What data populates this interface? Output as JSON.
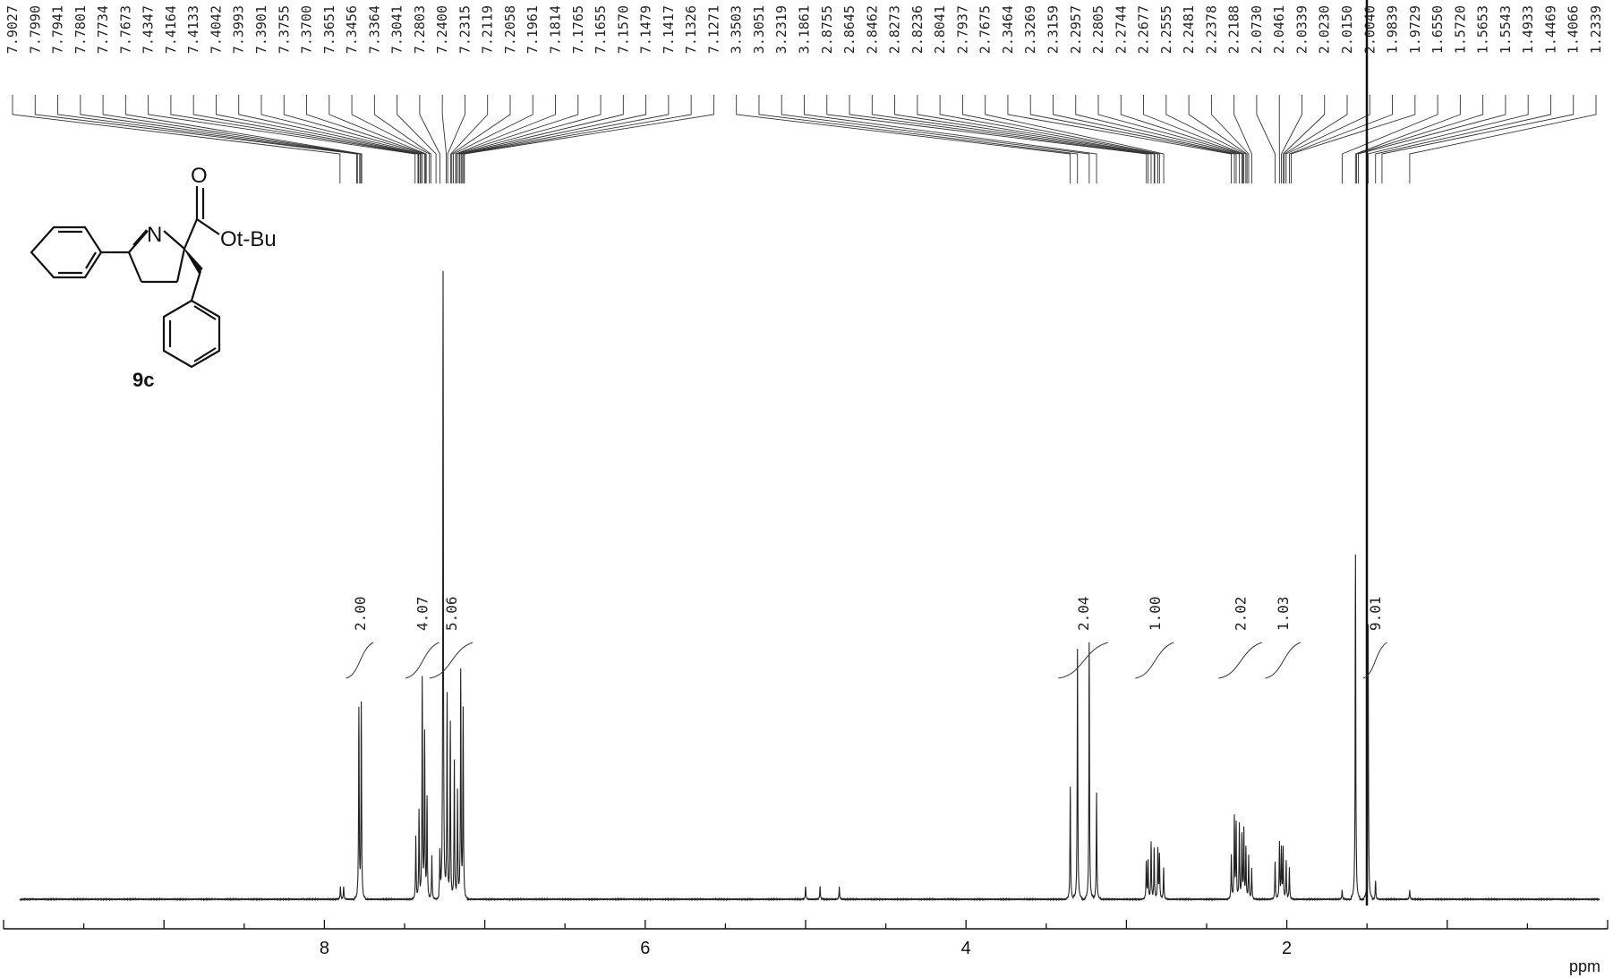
{
  "chart_data": {
    "type": "line",
    "xlabel": "ppm",
    "xlim": [
      10.0,
      0.0
    ],
    "x_reversed": true,
    "x_ticks": [
      8,
      6,
      4,
      2
    ],
    "peak_labels": [
      "7.9027",
      "7.7990",
      "7.7941",
      "7.7801",
      "7.7734",
      "7.7673",
      "7.4347",
      "7.4164",
      "7.4133",
      "7.4042",
      "7.3993",
      "7.3901",
      "7.3755",
      "7.3700",
      "7.3651",
      "7.3456",
      "7.3364",
      "7.3041",
      "7.2803",
      "7.2400",
      "7.2315",
      "7.2119",
      "7.2058",
      "7.1961",
      "7.1814",
      "7.1765",
      "7.1655",
      "7.1570",
      "7.1479",
      "7.1417",
      "7.1326",
      "7.1271",
      "3.3503",
      "3.3051",
      "3.2319",
      "3.1861",
      "2.8755",
      "2.8645",
      "2.8462",
      "2.8273",
      "2.8236",
      "2.8041",
      "2.7937",
      "2.7675",
      "2.3464",
      "2.3269",
      "2.3159",
      "2.2957",
      "2.2805",
      "2.2744",
      "2.2677",
      "2.2555",
      "2.2481",
      "2.2378",
      "2.2188",
      "2.0730",
      "2.0461",
      "2.0339",
      "2.0230",
      "2.0150",
      "2.0040",
      "1.9839",
      "1.9729",
      "1.6550",
      "1.5720",
      "1.5653",
      "1.5543",
      "1.4933",
      "1.4469",
      "1.4066",
      "1.2339"
    ],
    "integrals": [
      {
        "label": "2.00",
        "from": 7.82,
        "to": 7.74
      },
      {
        "label": "4.07",
        "from": 7.45,
        "to": 7.33
      },
      {
        "label": "5.06",
        "from": 7.3,
        "to": 7.12
      },
      {
        "label": "2.04",
        "from": 3.38,
        "to": 3.16
      },
      {
        "label": "1.00",
        "from": 2.9,
        "to": 2.75
      },
      {
        "label": "2.02",
        "from": 2.38,
        "to": 2.2
      },
      {
        "label": "1.03",
        "from": 2.09,
        "to": 1.96
      },
      {
        "label": "9.01",
        "from": 1.48,
        "to": 1.42
      }
    ],
    "series": [
      {
        "peaks": [
          [
            7.9,
            0.02
          ],
          [
            7.88,
            0.02
          ],
          [
            7.785,
            0.3
          ],
          [
            7.77,
            0.31
          ],
          [
            7.43,
            0.1
          ],
          [
            7.41,
            0.14
          ],
          [
            7.39,
            0.35
          ],
          [
            7.375,
            0.26
          ],
          [
            7.36,
            0.16
          ],
          [
            7.33,
            0.07
          ],
          [
            7.28,
            0.07
          ],
          [
            7.26,
            1.0
          ],
          [
            7.235,
            0.32
          ],
          [
            7.215,
            0.28
          ],
          [
            7.19,
            0.22
          ],
          [
            7.17,
            0.17
          ],
          [
            7.15,
            0.36
          ],
          [
            7.135,
            0.3
          ],
          [
            5.0,
            0.02
          ],
          [
            4.91,
            0.02
          ],
          [
            4.79,
            0.02
          ],
          [
            3.35,
            0.18
          ],
          [
            3.305,
            0.4
          ],
          [
            3.232,
            0.41
          ],
          [
            3.186,
            0.17
          ],
          [
            2.876,
            0.06
          ],
          [
            2.865,
            0.06
          ],
          [
            2.846,
            0.09
          ],
          [
            2.827,
            0.08
          ],
          [
            2.804,
            0.08
          ],
          [
            2.794,
            0.07
          ],
          [
            2.768,
            0.05
          ],
          [
            2.346,
            0.07
          ],
          [
            2.327,
            0.13
          ],
          [
            2.316,
            0.12
          ],
          [
            2.296,
            0.12
          ],
          [
            2.28,
            0.1
          ],
          [
            2.268,
            0.11
          ],
          [
            2.255,
            0.08
          ],
          [
            2.238,
            0.07
          ],
          [
            2.219,
            0.05
          ],
          [
            2.073,
            0.06
          ],
          [
            2.046,
            0.09
          ],
          [
            2.034,
            0.08
          ],
          [
            2.023,
            0.08
          ],
          [
            2.004,
            0.06
          ],
          [
            1.984,
            0.05
          ],
          [
            1.655,
            0.015
          ],
          [
            1.572,
            0.55
          ],
          [
            1.493,
            0.44
          ],
          [
            1.447,
            0.03
          ],
          [
            1.234,
            0.015
          ]
        ]
      }
    ]
  },
  "molecule": {
    "heteroatom_n": "N",
    "heteroatom_o": "O",
    "ester_group": "Ot-Bu",
    "compound_id": "9c"
  }
}
